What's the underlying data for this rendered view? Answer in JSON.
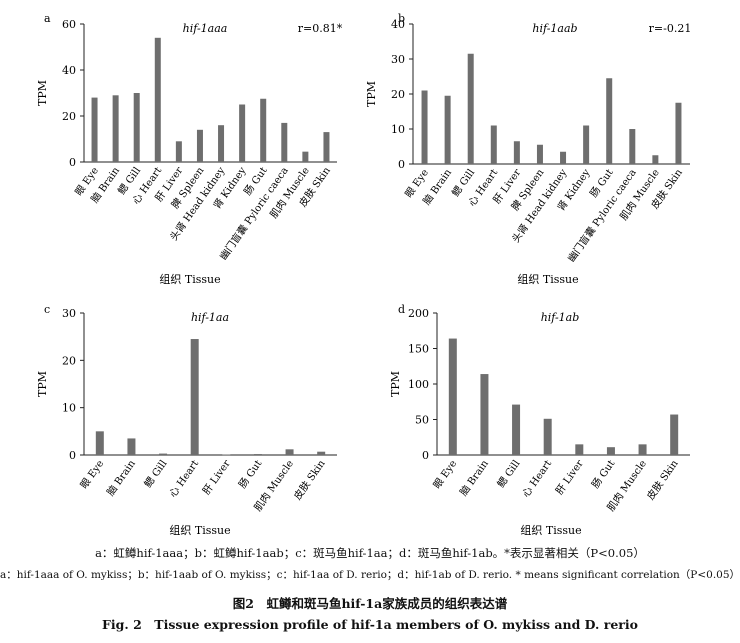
{
  "chart_data": [
    {
      "type": "bar",
      "panel": "a",
      "title": "hif-1aaa",
      "annotation": "r=0.81*",
      "ylabel": "TPM",
      "xlabel": "组织 Tissue",
      "ylim": [
        0,
        60
      ],
      "yticks": [
        0,
        20,
        40,
        60
      ],
      "categories": [
        "眼 Eye",
        "脑 Brain",
        "鳃 Gill",
        "心 Heart",
        "肝 Liver",
        "脾 Spleen",
        "头肾 Head kidney",
        "肾 Kidney",
        "肠 Gut",
        "幽门盲囊 Pyloric caeca",
        "肌肉 Muscle",
        "皮肤 Skin"
      ],
      "values": [
        28,
        29,
        30,
        54,
        9,
        14,
        16,
        25,
        27.5,
        17,
        4.5,
        13
      ],
      "bar_color": "#6e6e6e"
    },
    {
      "type": "bar",
      "panel": "b",
      "title": "hif-1aab",
      "annotation": "r=-0.21",
      "ylabel": "TPM",
      "xlabel": "组织 Tissue",
      "ylim": [
        0,
        40
      ],
      "yticks": [
        0,
        10,
        20,
        30,
        40
      ],
      "categories": [
        "眼 Eye",
        "脑 Brain",
        "鳃 Gill",
        "心 Heart",
        "肝 Liver",
        "脾 Spleen",
        "头肾 Head kidney",
        "肾 Kidney",
        "肠 Gut",
        "幽门盲囊 Pyloric caeca",
        "肌肉 Muscle",
        "皮肤 Skin"
      ],
      "values": [
        21,
        19.5,
        31.5,
        11,
        6.5,
        5.5,
        3.5,
        11,
        24.5,
        10,
        2.5,
        17.5
      ],
      "bar_color": "#6e6e6e"
    },
    {
      "type": "bar",
      "panel": "c",
      "title": "hif-1aa",
      "ylabel": "TPM",
      "xlabel": "组织 Tissue",
      "ylim": [
        0,
        30
      ],
      "yticks": [
        0,
        10,
        20,
        30
      ],
      "categories": [
        "眼 Eye",
        "脑 Brain",
        "鳃 Gill",
        "心 Heart",
        "肝 Liver",
        "肠 Gut",
        "肌肉 Muscle",
        "皮肤 Skin"
      ],
      "values": [
        5,
        3.5,
        0.3,
        24.5,
        0.1,
        0.2,
        1.2,
        0.7
      ],
      "bar_color": "#6e6e6e"
    },
    {
      "type": "bar",
      "panel": "d",
      "title": "hif-1ab",
      "ylabel": "TPM",
      "xlabel": "组织 Tissue",
      "ylim": [
        0,
        200
      ],
      "yticks": [
        0,
        50,
        100,
        150,
        200
      ],
      "categories": [
        "眼 Eye",
        "脑 Brain",
        "鳃 Gill",
        "心 Heart",
        "肝 Liver",
        "肠 Gut",
        "肌肉 Muscle",
        "皮肤 Skin"
      ],
      "values": [
        164,
        114,
        71,
        51,
        15,
        11,
        15,
        57
      ],
      "bar_color": "#6e6e6e"
    }
  ],
  "captions": {
    "legend_cn": "a：虹鳟hif-1aaa；b：虹鳟hif-1aab；c：斑马鱼hif-1aa；d：斑马鱼hif-1ab。*表示显著相关（P<0.05）",
    "legend_en": "a：hif-1aaa of O. mykiss；b：hif-1aab of O. mykiss；c：hif-1aa of D. rerio；d：hif-1ab of D. rerio. * means significant correlation（P<0.05）",
    "figure_title_cn": "图2　虹鳟和斑马鱼hif-1a家族成员的组织表达谱",
    "figure_title_en": "Fig. 2　Tissue expression profile of hif-1a members of O. mykiss and D. rerio"
  }
}
